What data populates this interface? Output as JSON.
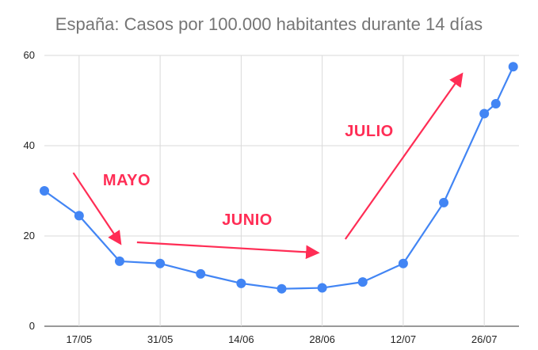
{
  "chart_data": {
    "type": "line",
    "title": "España: Casos por 100.000 habitantes durante 14 días",
    "xlabel": "",
    "ylabel": "",
    "ylim": [
      0,
      60
    ],
    "yticks": [
      "0",
      "20",
      "40",
      "60"
    ],
    "xtick_labels": [
      {
        "day": 5,
        "label": "17/05"
      },
      {
        "day": 19,
        "label": "31/05"
      },
      {
        "day": 33,
        "label": "14/06"
      },
      {
        "day": 47,
        "label": "28/06"
      },
      {
        "day": 61,
        "label": "12/07"
      },
      {
        "day": 75,
        "label": "26/07"
      }
    ],
    "xlim_days": [
      -1,
      81
    ],
    "grid": true,
    "series": [
      {
        "color": "#4285f4",
        "points": [
          {
            "day": -1,
            "value": 30.0
          },
          {
            "day": 5,
            "value": 24.5
          },
          {
            "day": 12,
            "value": 14.4
          },
          {
            "day": 19,
            "value": 13.9
          },
          {
            "day": 26,
            "value": 11.6
          },
          {
            "day": 33,
            "value": 9.5
          },
          {
            "day": 40,
            "value": 8.3
          },
          {
            "day": 47,
            "value": 8.5
          },
          {
            "day": 54,
            "value": 9.8
          },
          {
            "day": 61,
            "value": 13.9
          },
          {
            "day": 68,
            "value": 27.4
          },
          {
            "day": 75,
            "value": 47.1
          },
          {
            "day": 77,
            "value": 49.3
          },
          {
            "day": 80,
            "value": 57.5
          }
        ]
      }
    ],
    "annotations": [
      {
        "text": "MAYO",
        "color": "#ff2d55"
      },
      {
        "text": "JUNIO",
        "color": "#ff2d55"
      },
      {
        "text": "JULIO",
        "color": "#ff2d55"
      }
    ]
  }
}
